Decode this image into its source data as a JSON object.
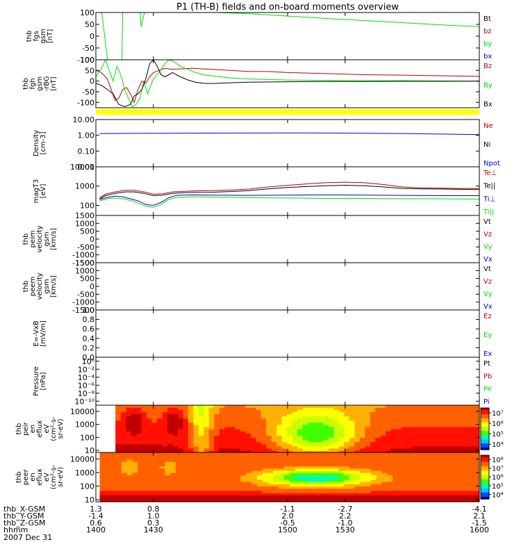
{
  "title": "P1 (TH-B) fields and on-board moments overview",
  "date_label": "2007 Dec 31",
  "colors": {
    "black": "#000000",
    "red": "#b00000",
    "darkred": "#8b0000",
    "green": "#00dd00",
    "blue": "#0000cc",
    "yellow": "#ffff00"
  },
  "x_axis": {
    "times": [
      1400,
      1430,
      1500,
      1530,
      1600
    ],
    "rows": [
      {
        "label": "thb_X-GSM",
        "values": [
          "1.3",
          "0.8",
          "-1.1",
          "-2.7",
          "-4.1"
        ]
      },
      {
        "label": "thb_Y-GSM",
        "values": [
          "-1.4",
          "1.0",
          "2.0",
          "2.2",
          "2.1"
        ]
      },
      {
        "label": "thb_Z-GSM",
        "values": [
          "0.6",
          "0.3",
          "-0.5",
          "-1.0",
          "-1.5"
        ]
      },
      {
        "label": "hhmm",
        "values": [
          "1400",
          "1430",
          "1500",
          "1530",
          "1600"
        ]
      }
    ]
  },
  "chart_data": [
    {
      "id": "fgs",
      "type": "line",
      "ylabel": [
        "thb",
        "fgs",
        "gsm",
        "[nT]"
      ],
      "ylim": [
        -100,
        100
      ],
      "yticks": [
        "100",
        "50",
        "0",
        "-50",
        "-100"
      ],
      "legend": [
        "Bt",
        "bz",
        "by",
        "bx"
      ],
      "legend_colors": [
        "black",
        "red",
        "green",
        "blue"
      ],
      "series": [
        {
          "name": "Bt",
          "color": "green",
          "x": [
            1423.2,
            1423.6,
            1425.4,
            1463,
            1480,
            1500,
            1520,
            1540,
            1560,
            1580,
            1600
          ],
          "y": [
            100,
            40,
            100,
            100,
            95,
            85,
            75,
            66,
            57,
            48,
            40
          ]
        },
        {
          "name": "by",
          "color": "green",
          "x": [
            1403,
            1404,
            1405.5,
            1406.2
          ],
          "y": [
            100,
            40,
            -60,
            -100
          ]
        },
        {
          "name": "by",
          "color": "green",
          "x": [
            1413.6,
            1414
          ],
          "y": [
            -100,
            100
          ]
        }
      ]
    },
    {
      "id": "fgh",
      "type": "line",
      "ylabel": [
        "thb",
        "fgh",
        "gsm",
        "-rBG",
        "[nT]"
      ],
      "ylim": [
        -125,
        100
      ],
      "yticks": [
        "100",
        "50",
        "0",
        "-50",
        "-100"
      ],
      "legend": [
        "Bz",
        "By",
        "Bx"
      ],
      "legend_colors": [
        "red",
        "green",
        "black"
      ],
      "series": [
        {
          "name": "Bz",
          "color": "red",
          "x": [
            1400,
            1402,
            1404,
            1406,
            1408,
            1410,
            1412,
            1414,
            1416,
            1418,
            1420,
            1422,
            1424,
            1426,
            1428,
            1430,
            1433,
            1436,
            1440,
            1450,
            1460,
            1470,
            1480,
            1490,
            1500,
            1520,
            1540,
            1560,
            1580,
            1600
          ],
          "y": [
            50,
            45,
            30,
            10,
            -40,
            -90,
            -80,
            -40,
            -30,
            -60,
            -100,
            -40,
            0,
            -10,
            20,
            40,
            50,
            60,
            55,
            60,
            55,
            50,
            45,
            45,
            40,
            35,
            30,
            28,
            25,
            22
          ]
        },
        {
          "name": "By",
          "color": "green",
          "x": [
            1400,
            1403,
            1405,
            1407,
            1409,
            1411,
            1413,
            1415,
            1417,
            1419,
            1421,
            1423,
            1425,
            1427,
            1430,
            1433,
            1436,
            1438,
            1440,
            1444,
            1448,
            1452,
            1456,
            1460,
            1470,
            1480,
            1500,
            1520,
            1540,
            1560,
            1580,
            1600
          ],
          "y": [
            20,
            60,
            100,
            50,
            0,
            70,
            30,
            -40,
            -80,
            -120,
            -110,
            -80,
            0,
            -60,
            10,
            40,
            80,
            100,
            95,
            70,
            55,
            40,
            30,
            25,
            15,
            10,
            5,
            3,
            2,
            2,
            1,
            0
          ]
        },
        {
          "name": "Bx",
          "color": "black",
          "x": [
            1400,
            1403,
            1406,
            1409,
            1412,
            1415,
            1418,
            1420,
            1422,
            1424,
            1426,
            1428,
            1430,
            1432,
            1434,
            1436,
            1438,
            1440,
            1444,
            1448,
            1452,
            1456,
            1460,
            1470,
            1480,
            1500,
            1520,
            1540,
            1560,
            1580,
            1600
          ],
          "y": [
            -10,
            -20,
            -40,
            -60,
            -110,
            -120,
            -110,
            -70,
            -60,
            -40,
            10,
            80,
            100,
            70,
            30,
            20,
            30,
            40,
            20,
            5,
            -5,
            -10,
            -12,
            -8,
            -5,
            -3,
            -2,
            -2,
            -1,
            -1,
            0
          ]
        }
      ]
    },
    {
      "id": "density",
      "type": "line",
      "ylabel": [
        "Density",
        "[cm-3]"
      ],
      "scale": "log",
      "ylim": [
        0.01,
        10
      ],
      "yticks": [
        "10.00",
        "1.00",
        "0.10",
        "0.01"
      ],
      "legend": [
        "Ne",
        "Ni",
        "Npot"
      ],
      "legend_colors": [
        "red",
        "black",
        "blue"
      ],
      "series": [
        {
          "name": "Npot",
          "color": "blue",
          "x": [
            1402,
            1420,
            1440,
            1460,
            1480,
            1500,
            1520,
            1540,
            1560,
            1580,
            1600
          ],
          "y": [
            1.3,
            1.32,
            1.35,
            1.38,
            1.4,
            1.42,
            1.4,
            1.35,
            1.3,
            1.2,
            1.1
          ]
        }
      ]
    },
    {
      "id": "temp",
      "type": "line",
      "ylabel": [
        "magT3",
        "[eV]"
      ],
      "scale": "log",
      "ylim": [
        30,
        10000
      ],
      "yticks": [
        "10000",
        "1000",
        "100"
      ],
      "legend": [
        "Te⊥",
        "Te||",
        "Ti⊥",
        "Ti||"
      ],
      "legend_colors": [
        "red",
        "black",
        "blue",
        "green"
      ],
      "series": [
        {
          "name": "Te⊥",
          "color": "red",
          "x": [
            1402,
            1405,
            1410,
            1415,
            1420,
            1425,
            1430,
            1435,
            1440,
            1450,
            1460,
            1470,
            1480,
            1490,
            1500,
            1510,
            1520,
            1530,
            1540,
            1550,
            1560,
            1570,
            1580,
            1590,
            1600
          ],
          "y": [
            250,
            380,
            500,
            600,
            600,
            500,
            380,
            400,
            500,
            560,
            580,
            620,
            700,
            900,
            1100,
            1300,
            1500,
            1600,
            1500,
            1200,
            900,
            800,
            780,
            760,
            750
          ]
        },
        {
          "name": "Te||",
          "color": "black",
          "x": [
            1402,
            1405,
            1410,
            1415,
            1420,
            1425,
            1430,
            1435,
            1440,
            1450,
            1460,
            1470,
            1480,
            1490,
            1500,
            1510,
            1520,
            1530,
            1540,
            1550,
            1560,
            1570,
            1580,
            1590,
            1600
          ],
          "y": [
            220,
            320,
            420,
            500,
            500,
            420,
            320,
            340,
            420,
            470,
            480,
            520,
            580,
            720,
            850,
            950,
            1050,
            1100,
            1050,
            900,
            760,
            720,
            700,
            680,
            660
          ]
        },
        {
          "name": "Ti⊥",
          "color": "blue",
          "x": [
            1402,
            1406,
            1410,
            1414,
            1418,
            1422,
            1426,
            1430,
            1434,
            1438,
            1442,
            1450,
            1460,
            1480,
            1500,
            1520,
            1540,
            1560,
            1580,
            1600
          ],
          "y": [
            200,
            260,
            300,
            280,
            220,
            170,
            110,
            100,
            140,
            250,
            330,
            350,
            340,
            330,
            340,
            350,
            340,
            330,
            320,
            320
          ]
        },
        {
          "name": "Ti||",
          "color": "green",
          "x": [
            1402,
            1406,
            1410,
            1414,
            1418,
            1422,
            1426,
            1430,
            1434,
            1438,
            1442,
            1450,
            1460,
            1480,
            1500,
            1520,
            1540,
            1560,
            1580,
            1600
          ],
          "y": [
            170,
            220,
            240,
            220,
            180,
            130,
            90,
            80,
            110,
            200,
            260,
            280,
            270,
            250,
            240,
            230,
            230,
            220,
            220,
            210
          ]
        }
      ]
    },
    {
      "id": "peim",
      "type": "line",
      "ylabel": [
        "thb",
        "peim",
        "velocity",
        "gsm",
        "[km/s]"
      ],
      "ylim": [
        -1500,
        1500
      ],
      "yticks": [
        "1500",
        "1000",
        "500",
        "0",
        "-500",
        "-1000",
        "-1500"
      ],
      "legend": [
        "Vt",
        "Vz",
        "Vy",
        "Vx"
      ],
      "legend_colors": [
        "black",
        "red",
        "green",
        "blue"
      ],
      "series": []
    },
    {
      "id": "peem",
      "type": "line",
      "ylabel": [
        "thb",
        "peem",
        "velocity",
        "gsm",
        "[km/s]"
      ],
      "ylim": [
        -1500,
        1500
      ],
      "yticks": [
        "1500",
        "1000",
        "500",
        "0",
        "-500",
        "-1000",
        "-1500"
      ],
      "legend": [
        "Vt",
        "Vz",
        "Vy",
        "Vx"
      ],
      "legend_colors": [
        "black",
        "red",
        "green",
        "blue"
      ],
      "series": []
    },
    {
      "id": "efield",
      "type": "line",
      "ylabel": [
        "E=-VxB",
        "[mV/m]"
      ],
      "ylim": [
        0,
        1
      ],
      "yticks": [
        "1.0",
        "0.8",
        "0.6",
        "0.4",
        "0.2",
        "0.0"
      ],
      "legend": [
        "Ez",
        "Ey",
        "Ex"
      ],
      "legend_colors": [
        "red",
        "green",
        "blue"
      ],
      "series": []
    },
    {
      "id": "pressure",
      "type": "line",
      "ylabel": [
        "Pressure",
        "[nPa]"
      ],
      "scale": "log",
      "ylim": [
        1e-11,
        10
      ],
      "yticks": [
        "10⁰",
        "10⁻²",
        "10⁻⁴",
        "10⁻⁶",
        "10⁻⁸",
        "10⁻¹⁰"
      ],
      "legend": [
        "Pt",
        "Pb",
        "Pe",
        "Pi"
      ],
      "legend_colors": [
        "black",
        "red",
        "green",
        "blue"
      ],
      "series": []
    },
    {
      "id": "peir",
      "type": "heatmap",
      "ylabel": [
        "thb",
        "peir",
        "en",
        "eflux",
        "eV",
        "(cm²-s-",
        "sr-eV)"
      ],
      "scale": "log",
      "ylim": [
        7,
        30000
      ],
      "yticks": [
        "10000",
        "1000",
        "100",
        "10"
      ],
      "colorbar": {
        "range": [
          3000,
          30000000
        ],
        "ticks": [
          "10⁷",
          "10⁶",
          "10⁵",
          "10⁴"
        ]
      }
    },
    {
      "id": "peer",
      "type": "heatmap",
      "ylabel": [
        "thb",
        "peer",
        "en",
        "eflux",
        "eV",
        "(cm²-s-",
        "sr-eV)"
      ],
      "scale": "log",
      "ylim": [
        7,
        30000
      ],
      "yticks": [
        "10000",
        "1000",
        "100",
        "10"
      ],
      "colorbar": {
        "range": [
          3000,
          300000000
        ],
        "ticks": [
          "10⁸",
          "10⁷",
          "10⁶",
          "10⁵",
          "10⁴"
        ]
      }
    }
  ]
}
